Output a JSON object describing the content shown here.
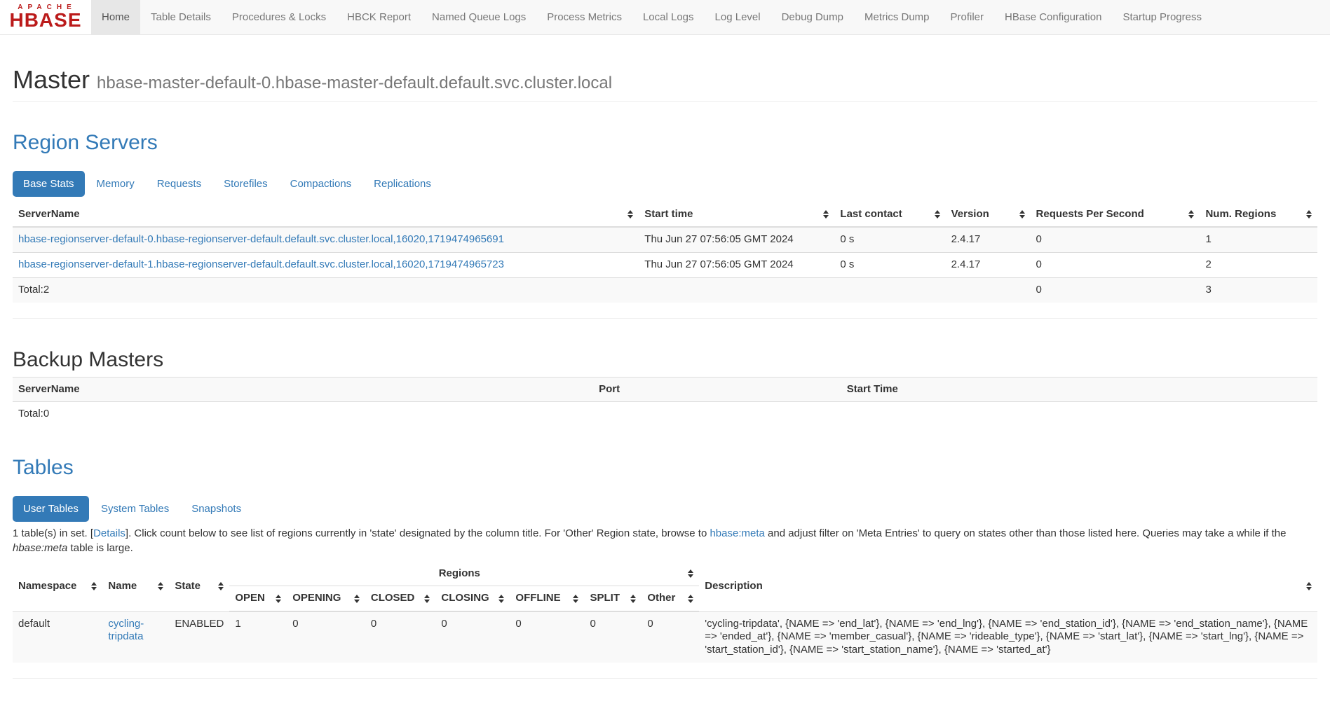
{
  "navbar": {
    "brand_top": "APACHE",
    "brand_bottom": "HBASE",
    "items": [
      {
        "label": "Home",
        "active": true
      },
      {
        "label": "Table Details",
        "active": false
      },
      {
        "label": "Procedures & Locks",
        "active": false
      },
      {
        "label": "HBCK Report",
        "active": false
      },
      {
        "label": "Named Queue Logs",
        "active": false
      },
      {
        "label": "Process Metrics",
        "active": false
      },
      {
        "label": "Local Logs",
        "active": false
      },
      {
        "label": "Log Level",
        "active": false
      },
      {
        "label": "Debug Dump",
        "active": false
      },
      {
        "label": "Metrics Dump",
        "active": false
      },
      {
        "label": "Profiler",
        "active": false
      },
      {
        "label": "HBase Configuration",
        "active": false
      },
      {
        "label": "Startup Progress",
        "active": false
      }
    ]
  },
  "master": {
    "title": "Master",
    "subtitle": "hbase-master-default-0.hbase-master-default.default.svc.cluster.local"
  },
  "region_servers": {
    "heading": "Region Servers",
    "active_tab": "Base Stats",
    "tabs": [
      "Base Stats",
      "Memory",
      "Requests",
      "Storefiles",
      "Compactions",
      "Replications"
    ],
    "columns": [
      "ServerName",
      "Start time",
      "Last contact",
      "Version",
      "Requests Per Second",
      "Num. Regions"
    ],
    "rows": [
      {
        "server_name": "hbase-regionserver-default-0.hbase-regionserver-default.default.svc.cluster.local,16020,1719474965691",
        "start_time": "Thu Jun 27 07:56:05 GMT 2024",
        "last_contact": "0 s",
        "version": "2.4.17",
        "requests_per_second": "0",
        "num_regions": "1"
      },
      {
        "server_name": "hbase-regionserver-default-1.hbase-regionserver-default.default.svc.cluster.local,16020,1719474965723",
        "start_time": "Thu Jun 27 07:56:05 GMT 2024",
        "last_contact": "0 s",
        "version": "2.4.17",
        "requests_per_second": "0",
        "num_regions": "2"
      }
    ],
    "total": {
      "label": "Total:2",
      "requests_per_second": "0",
      "num_regions": "3"
    }
  },
  "backup_masters": {
    "heading": "Backup Masters",
    "columns": [
      "ServerName",
      "Port",
      "Start Time"
    ],
    "total": "Total:0"
  },
  "tables": {
    "heading": "Tables",
    "active_tab": "User Tables",
    "tabs": [
      "User Tables",
      "System Tables",
      "Snapshots"
    ],
    "note": {
      "p0": "1 table(s) in set. [",
      "details_link": "Details",
      "p1": "]. Click count below to see list of regions currently in 'state' designated by the column title. For 'Other' Region state, browse to ",
      "meta_link": "hbase:meta",
      "p2": " and adjust filter on 'Meta Entries' to query on states other than those listed here. Queries may take a while if the ",
      "meta_italic": "hbase:meta",
      "p3": " table is large."
    },
    "columns": {
      "namespace": "Namespace",
      "name": "Name",
      "state": "State",
      "regions_group": "Regions",
      "region_states": [
        "OPEN",
        "OPENING",
        "CLOSED",
        "CLOSING",
        "OFFLINE",
        "SPLIT",
        "Other"
      ],
      "description": "Description"
    },
    "row": {
      "namespace": "default",
      "name": "cycling-tripdata",
      "state": "ENABLED",
      "open": "1",
      "opening": "0",
      "closed": "0",
      "closing": "0",
      "offline": "0",
      "split": "0",
      "other": "0",
      "description": "'cycling-tripdata', {NAME => 'end_lat'}, {NAME => 'end_lng'}, {NAME => 'end_station_id'}, {NAME => 'end_station_name'}, {NAME => 'ended_at'}, {NAME => 'member_casual'}, {NAME => 'rideable_type'}, {NAME => 'start_lat'}, {NAME => 'start_lng'}, {NAME => 'start_station_id'}, {NAME => 'start_station_name'}, {NAME => 'started_at'}"
    }
  },
  "icons": {
    "sort": "up-down-sort-arrows"
  },
  "colors": {
    "accent_blue": "#337ab7",
    "logo_red": "#bb1b1b",
    "navbar_bg": "#f8f8f8",
    "navbar_active_bg": "#e7e7e7",
    "table_stripe": "#f9f9f9",
    "table_border": "#dddddd",
    "muted_text": "#777777"
  }
}
